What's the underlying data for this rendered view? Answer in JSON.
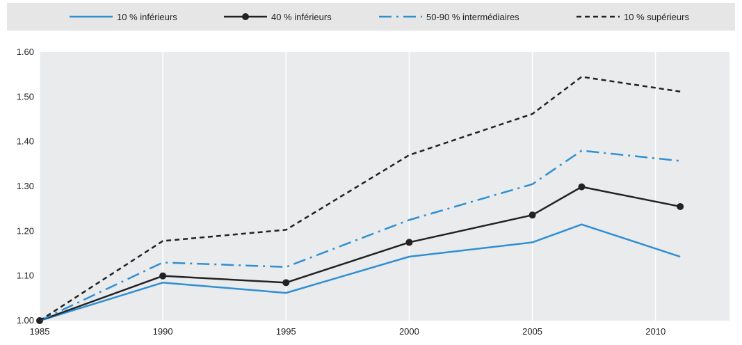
{
  "chart_data": {
    "type": "line",
    "x": [
      1985,
      1990,
      1995,
      2000,
      2005,
      2007,
      2011
    ],
    "x_ticks": [
      "1985",
      "1990",
      "1995",
      "2000",
      "2005",
      "2010"
    ],
    "y_ticks": [
      "1.00",
      "1.10",
      "1.20",
      "1.30",
      "1.40",
      "1.50",
      "1.60"
    ],
    "xlim": [
      1985,
      2013
    ],
    "ylim": [
      1.0,
      1.6
    ],
    "grid": "vertical",
    "legend_position": "top",
    "series": [
      {
        "name": "10 % inférieurs",
        "color": "#2f8fd2",
        "style": "solid",
        "values": [
          1.0,
          1.085,
          1.062,
          1.143,
          1.175,
          1.215,
          1.143
        ]
      },
      {
        "name": "40 % inférieurs",
        "color": "#222222",
        "style": "solid-markers",
        "values": [
          1.0,
          1.1,
          1.085,
          1.175,
          1.236,
          1.299,
          1.255
        ]
      },
      {
        "name": "50-90 % intermédiaires",
        "color": "#2f8fd2",
        "style": "dashdot",
        "values": [
          1.0,
          1.13,
          1.12,
          1.225,
          1.305,
          1.38,
          1.357
        ]
      },
      {
        "name": "10 % supérieurs",
        "color": "#222222",
        "style": "dashed",
        "values": [
          1.0,
          1.178,
          1.203,
          1.37,
          1.462,
          1.545,
          1.512
        ]
      }
    ]
  }
}
